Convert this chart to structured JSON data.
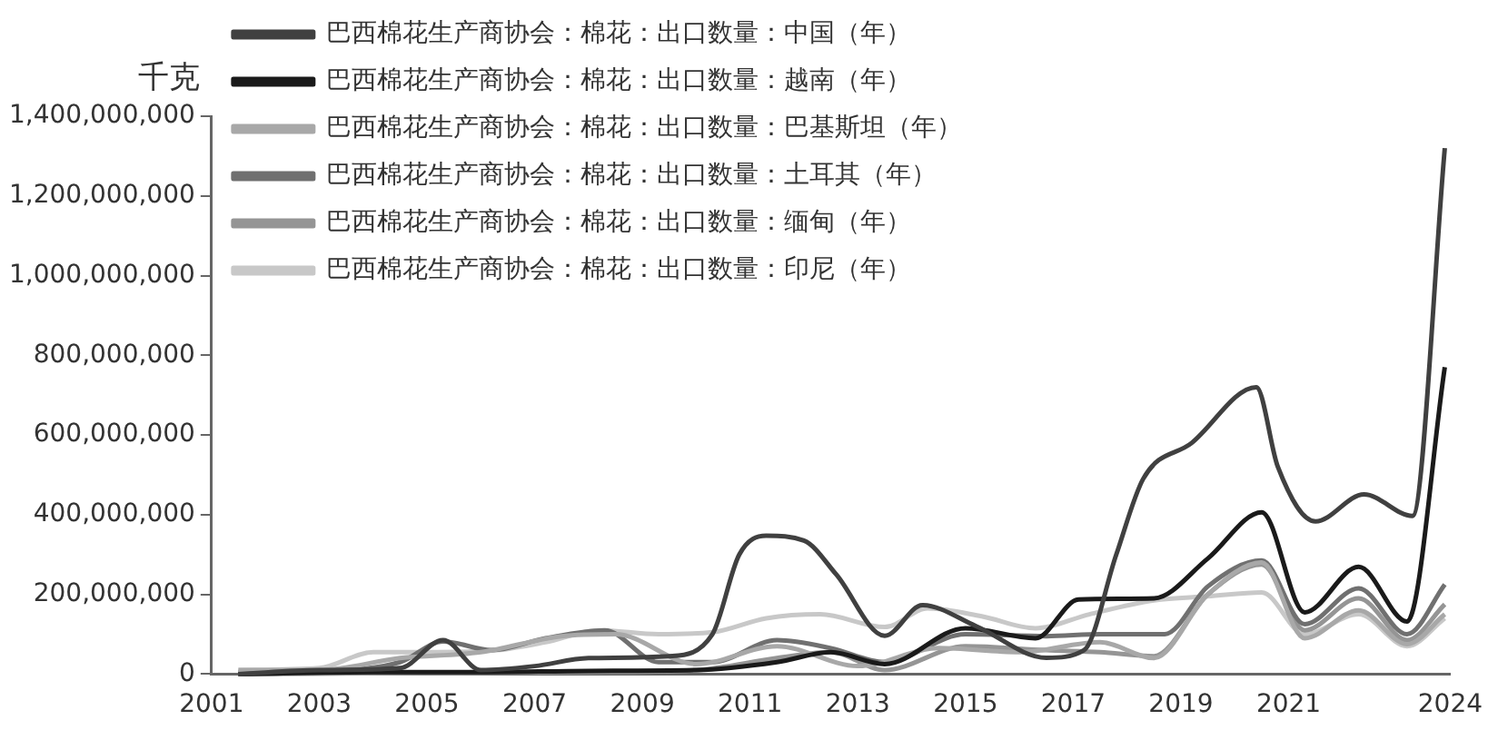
{
  "chart_data": {
    "type": "line",
    "ylabel": "千克",
    "xlim": [
      2001,
      2024
    ],
    "xticks": [
      2001,
      2003,
      2005,
      2007,
      2009,
      2011,
      2013,
      2015,
      2017,
      2019,
      2021,
      2024
    ],
    "ylim": [
      0,
      1400000000
    ],
    "yticks": [
      {
        "value": 0,
        "label": "0"
      },
      {
        "value": 200000000,
        "label": "200,000,000"
      },
      {
        "value": 400000000,
        "label": "400,000,000"
      },
      {
        "value": 600000000,
        "label": "600,000,000"
      },
      {
        "value": 800000000,
        "label": "800,000,000"
      },
      {
        "value": 1000000000,
        "label": "1,000,000,000"
      },
      {
        "value": 1200000000,
        "label": "1,200,000,000"
      },
      {
        "value": 1400000000,
        "label": "1,400,000,000"
      }
    ],
    "grid": false,
    "legend": "top left",
    "marker": "none",
    "line_style": "solid",
    "series": [
      {
        "name": "巴西棉花生产商协会：棉花：出口数量：中国（年）",
        "color": "#404040",
        "x": [
          2001.5,
          2003,
          2004.5,
          2005.3,
          2006,
          2007,
          2008,
          2009.5,
          2010.3,
          2010.8,
          2011.3,
          2012,
          2012.6,
          2013.5,
          2014.2,
          2015.2,
          2016.5,
          2017.2,
          2017.8,
          2018.3,
          2019.2,
          2020.4,
          2020.8,
          2021.5,
          2022.4,
          2023.3,
          2023.9
        ],
        "values": [
          0,
          10000000,
          15000000,
          85000000,
          10000000,
          20000000,
          40000000,
          45000000,
          100000000,
          300000000,
          347000000,
          335000000,
          250000000,
          96000000,
          173000000,
          120000000,
          41000000,
          60000000,
          300000000,
          490000000,
          580000000,
          720000000,
          520000000,
          383000000,
          451000000,
          397000000,
          1320000000
        ]
      },
      {
        "name": "巴西棉花生产商协会：棉花：出口数量：越南（年）",
        "color": "#1a1a1a",
        "x": [
          2001.5,
          2004,
          2006,
          2008,
          2010,
          2011.5,
          2012.5,
          2013.5,
          2015,
          2016.3,
          2017.1,
          2018.5,
          2019.5,
          2020.5,
          2021.3,
          2022.3,
          2023.2,
          2023.9
        ],
        "values": [
          0,
          5000000,
          5000000,
          8000000,
          10000000,
          30000000,
          55000000,
          25000000,
          115000000,
          90000000,
          187000000,
          190000000,
          290000000,
          406000000,
          155000000,
          269000000,
          132000000,
          770000000
        ]
      },
      {
        "name": "巴西棉花生产商协会：棉花：出口数量：巴基斯坦（年）",
        "color": "#a8a8a8",
        "x": [
          2001.5,
          2003,
          2004.5,
          2006,
          2007.5,
          2008.5,
          2010,
          2011.5,
          2013,
          2014.5,
          2016,
          2017.5,
          2018.5,
          2019.5,
          2020.5,
          2021.3,
          2022.3,
          2023.2,
          2023.9
        ],
        "values": [
          10000000,
          10000000,
          40000000,
          55000000,
          95000000,
          100000000,
          25000000,
          70000000,
          20000000,
          65000000,
          55000000,
          80000000,
          40000000,
          200000000,
          280000000,
          90000000,
          160000000,
          75000000,
          150000000
        ]
      },
      {
        "name": "巴西棉花生产商协会：棉花：出口数量：土耳其（年）",
        "color": "#707070",
        "x": [
          2001.5,
          2003,
          2004.5,
          2005.3,
          2006.2,
          2007.2,
          2008.3,
          2009.3,
          2010.3,
          2011.5,
          2012.5,
          2013.5,
          2015,
          2016.5,
          2017.5,
          2018.7,
          2019.5,
          2020.5,
          2021.3,
          2022.3,
          2023.2,
          2023.9
        ],
        "values": [
          5000000,
          8000000,
          30000000,
          82000000,
          60000000,
          90000000,
          110000000,
          30000000,
          30000000,
          85000000,
          65000000,
          30000000,
          100000000,
          95000000,
          100000000,
          100000000,
          220000000,
          285000000,
          125000000,
          215000000,
          100000000,
          225000000
        ]
      },
      {
        "name": "巴西棉花生产商协会：棉花：出口数量：缅甸（年）",
        "color": "#959595",
        "x": [
          2001.5,
          2005,
          2008,
          2010,
          2011.5,
          2012.5,
          2013.5,
          2015,
          2016.5,
          2017.5,
          2018.5,
          2019.5,
          2020.5,
          2021.3,
          2022.3,
          2023.2,
          2023.9
        ],
        "values": [
          0,
          3000000,
          5000000,
          10000000,
          40000000,
          55000000,
          10000000,
          70000000,
          60000000,
          55000000,
          45000000,
          200000000,
          275000000,
          110000000,
          190000000,
          85000000,
          175000000
        ]
      },
      {
        "name": "巴西棉花生产商协会：棉花：出口数量：印尼（年）",
        "color": "#c8c8c8",
        "x": [
          2001.5,
          2003,
          2004,
          2005,
          2006.3,
          2007.2,
          2008.2,
          2009.3,
          2010.3,
          2011.3,
          2012.3,
          2013.5,
          2014.3,
          2015.3,
          2016.3,
          2017.3,
          2018.5,
          2019.5,
          2020.5,
          2021.3,
          2022.3,
          2023.2,
          2023.9
        ],
        "values": [
          10000000,
          15000000,
          55000000,
          55000000,
          60000000,
          80000000,
          110000000,
          100000000,
          105000000,
          140000000,
          150000000,
          118000000,
          165000000,
          145000000,
          115000000,
          150000000,
          185000000,
          195000000,
          205000000,
          100000000,
          150000000,
          70000000,
          140000000
        ]
      }
    ]
  }
}
